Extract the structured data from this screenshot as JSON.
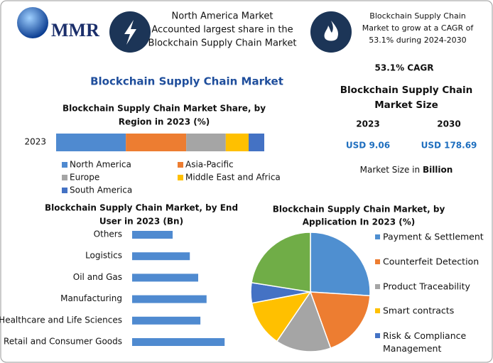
{
  "logo": "MMR",
  "header": {
    "left_text": [
      "North America Market",
      "Accounted largest share in the",
      "Blockchain Supply Chain Market"
    ],
    "right_text": [
      "Blockchain Supply Chain",
      "Market to grow at a CAGR of",
      "53.1% during 2024-2030"
    ]
  },
  "main_title": "Blockchain Supply Chain Market",
  "summary": {
    "cagr": "53.1% CAGR",
    "size_title": [
      "Blockchain Supply Chain",
      "Market Size"
    ],
    "years": [
      "2023",
      "2030"
    ],
    "values": [
      "USD 9.06",
      "USD 178.69"
    ],
    "unit_prefix": "Market Size in",
    "unit": "Billion"
  },
  "chart_data": [
    {
      "type": "stacked-bar",
      "title": [
        "Blockchain Supply Chain Market Share, by",
        "Region in 2023 (%)"
      ],
      "categories": [
        "2023"
      ],
      "xlim": [
        0,
        100
      ],
      "series": [
        {
          "name": "North America",
          "color": "#4f8ad0",
          "values": [
            33.5
          ]
        },
        {
          "name": "Asia-Pacific",
          "color": "#ed7d31",
          "values": [
            29
          ]
        },
        {
          "name": "Europe",
          "color": "#a5a5a5",
          "values": [
            19
          ]
        },
        {
          "name": "Middle East and Africa",
          "color": "#ffc000",
          "values": [
            11
          ]
        },
        {
          "name": "South America",
          "color": "#4472c4",
          "values": [
            7.5
          ]
        }
      ]
    },
    {
      "type": "hbar",
      "title": [
        "Blockchain Supply Chain Market, by End",
        "User in 2023 (Bn)"
      ],
      "categories": [
        "Others",
        "Logistics",
        "Oil and Gas",
        "Manufacturing",
        "Healthcare and Life Sciences",
        "Retail and Consumer Goods"
      ],
      "values": [
        0.92,
        1.31,
        1.5,
        1.69,
        1.55,
        2.1
      ],
      "color": "#4f8ad0",
      "xlim": [
        0,
        3
      ]
    },
    {
      "type": "pie",
      "title": [
        "Blockchain Supply Chain Market, by",
        "Application In 2023 (%)"
      ],
      "categories": [
        "Payment & Settlement",
        "Counterfeit Detection",
        "Product Traceability",
        "Smart contracts",
        "Risk & Compliance Management",
        null
      ],
      "values": [
        26,
        18.5,
        15,
        12.5,
        5.5,
        22.5
      ],
      "colors": [
        "#4f8fd0",
        "#ed7d31",
        "#a5a5a5",
        "#ffc000",
        "#4472c4",
        "#70ad47"
      ]
    }
  ]
}
